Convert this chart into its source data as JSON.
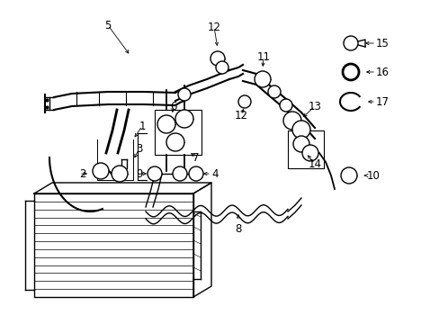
{
  "background_color": "#ffffff",
  "line_color": "#000000",
  "lw": 1.0,
  "font_size": 8.5
}
